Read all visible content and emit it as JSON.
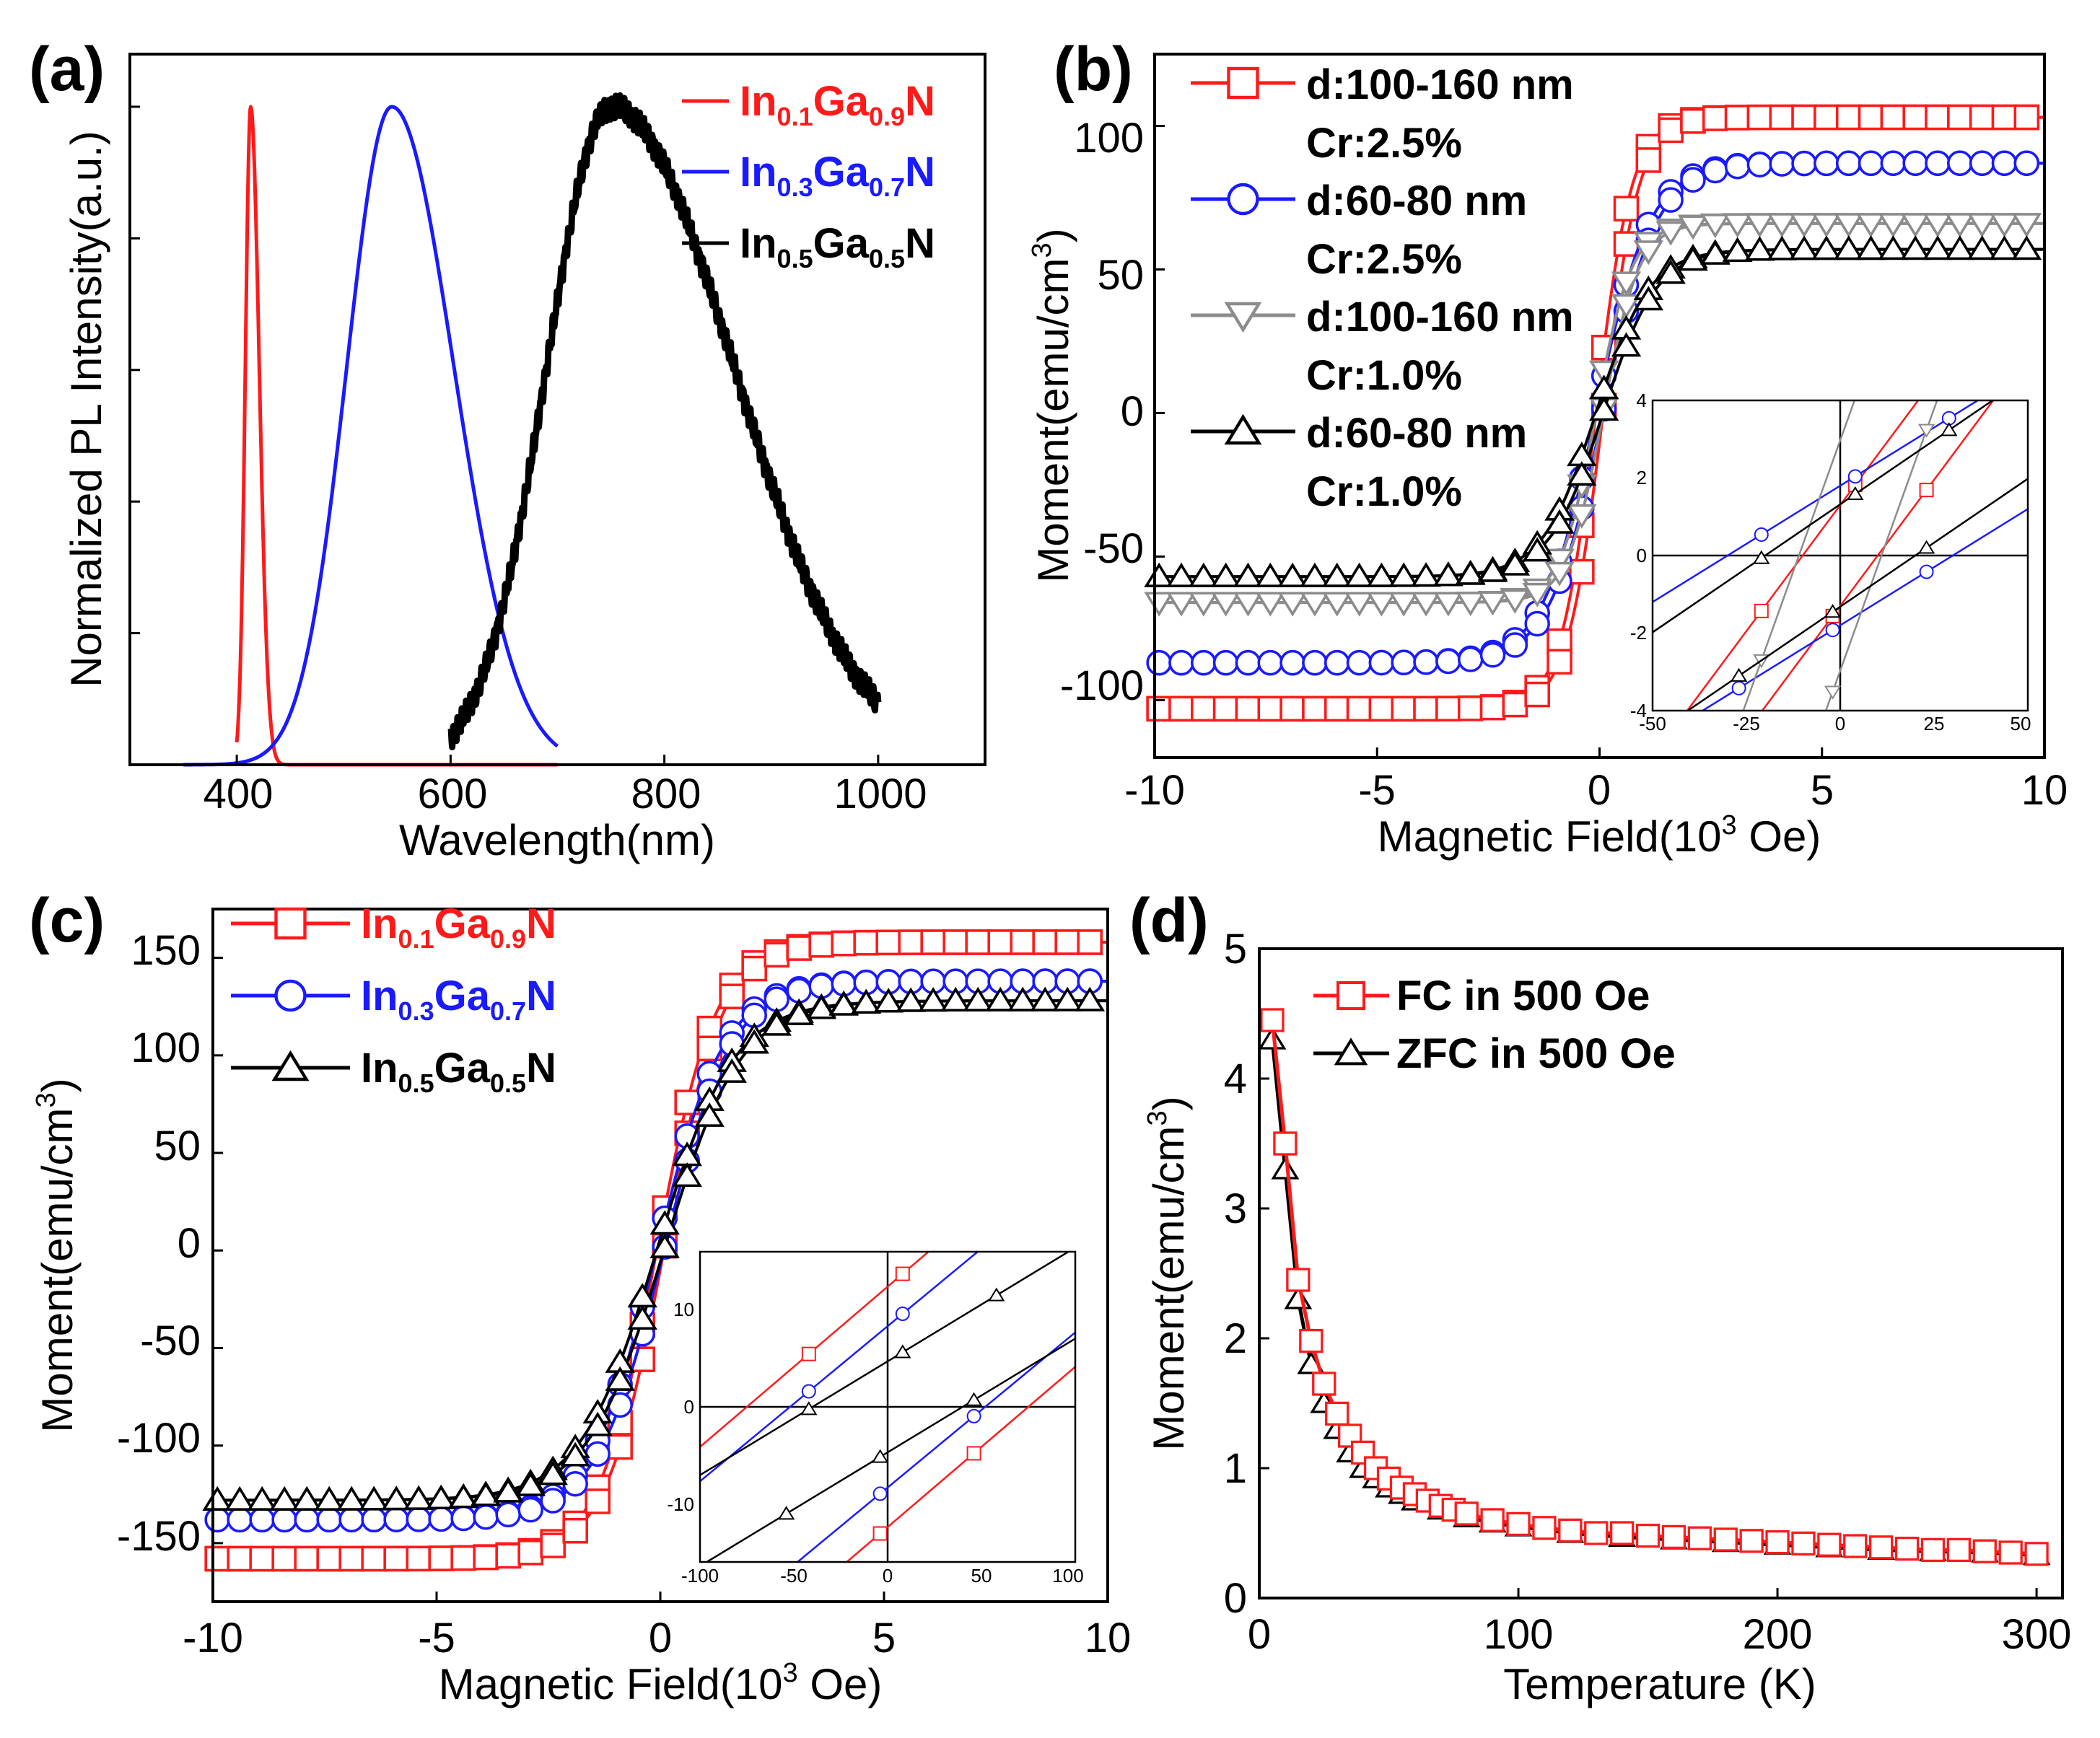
{
  "colors": {
    "red": "#ff1a1a",
    "blue": "#1a1aff",
    "black": "#000000",
    "gray": "#8c8c8c"
  },
  "chart_data": [
    {
      "id": "a",
      "panel_label": "(a)",
      "type": "line",
      "xlabel": "Wavelength(nm)",
      "ylabel": "Normalized PL Intensity(a.u.)",
      "xlim": [
        300,
        1100
      ],
      "ylim": [
        0,
        1.08
      ],
      "xticks": [
        "400",
        "600",
        "800",
        "1000"
      ],
      "y_tick_labels_shown": false,
      "legend_position": "top-right",
      "series": [
        {
          "name_main": "In",
          "sub1": "0.1",
          "mid": "Ga",
          "sub2": "0.9",
          "end": "N",
          "color": "red",
          "peak": 413,
          "sigma_left": 5,
          "sigma_right": 8,
          "range": [
            400,
            700
          ]
        },
        {
          "name_main": "In",
          "sub1": "0.3",
          "mid": "Ga",
          "sub2": "0.7",
          "end": "N",
          "color": "blue",
          "peak": 545,
          "sigma_left": 42,
          "sigma_right": 58,
          "range": [
            350,
            700
          ]
        },
        {
          "name_main": "In",
          "sub1": "0.5",
          "mid": "Ga",
          "sub2": "0.5",
          "end": "N",
          "color": "black",
          "peak": 750,
          "sigma_left": 60,
          "sigma_right": 115,
          "range": [
            600,
            1000
          ]
        }
      ]
    },
    {
      "id": "b",
      "panel_label": "(b)",
      "type": "line",
      "xlabel_pre": "Magnetic Field(10",
      "xlabel_sup": "3",
      "xlabel_post": " Oe)",
      "ylabel_pre": "Moment(emu/cm",
      "ylabel_sup": "3",
      "ylabel_post": ")",
      "xlim": [
        -10,
        10
      ],
      "ylim": [
        -120,
        125
      ],
      "xticks": [
        "-10",
        "-5",
        "0",
        "5",
        "10"
      ],
      "yticks": [
        "-100",
        "-50",
        "0",
        "50",
        "100"
      ],
      "legend_position": "top-left",
      "series": [
        {
          "line1": "d:100-160 nm",
          "line2": "Cr:2.5%",
          "color": "red",
          "marker": "square",
          "Ms": 103,
          "Hs": 0.8
        },
        {
          "line1": "d:60-80 nm",
          "line2": "Cr:2.5%",
          "color": "blue",
          "marker": "circle",
          "Ms": 87,
          "Hs": 1.2
        },
        {
          "line1": "d:100-160 nm",
          "line2": "Cr:1.0%",
          "color": "gray",
          "marker": "triangle-down",
          "Ms": 66,
          "Hs": 0.8
        },
        {
          "line1": "d:60-80 nm",
          "line2": "Cr:1.0%",
          "color": "black",
          "marker": "triangle",
          "Ms": 57,
          "Hs": 1.2
        }
      ],
      "inset": {
        "xlim": [
          -50,
          50
        ],
        "ylim": [
          -4,
          4
        ],
        "xticks": [
          "-50",
          "-25",
          "0",
          "25",
          "50"
        ],
        "yticks": [
          "-4",
          "-2",
          "0",
          "2",
          "4"
        ],
        "series": [
          {
            "color": "red",
            "slope": 0.13,
            "Hc": 10,
            "marker": "square"
          },
          {
            "color": "blue",
            "slope": 0.06,
            "Hc": 30,
            "marker": "circle"
          },
          {
            "color": "gray",
            "slope": 0.27,
            "Hc": 11,
            "marker": "triangle-down"
          },
          {
            "color": "black",
            "slope": 0.066,
            "Hc": 20,
            "marker": "triangle"
          }
        ]
      }
    },
    {
      "id": "c",
      "panel_label": "(c)",
      "type": "line",
      "xlabel_pre": "Magnetic Field(10",
      "xlabel_sup": "3",
      "xlabel_post": " Oe)",
      "ylabel_pre": "Moment(emu/cm",
      "ylabel_sup": "3",
      "ylabel_post": ")",
      "xlim": [
        -10,
        10
      ],
      "ylim": [
        -180,
        175
      ],
      "xticks": [
        "-10",
        "-5",
        "0",
        "5",
        "10"
      ],
      "yticks": [
        "-150",
        "-100",
        "-50",
        "0",
        "50",
        "100",
        "150"
      ],
      "legend_position": "top-left",
      "series": [
        {
          "name_main": "In",
          "sub1": "0.1",
          "mid": "Ga",
          "sub2": "0.9",
          "end": "N",
          "color": "red",
          "marker": "square",
          "Ms": 158,
          "Hs": 1.3
        },
        {
          "name_main": "In",
          "sub1": "0.3",
          "mid": "Ga",
          "sub2": "0.7",
          "end": "N",
          "color": "blue",
          "marker": "circle",
          "Ms": 138,
          "Hs": 1.5
        },
        {
          "name_main": "In",
          "sub1": "0.5",
          "mid": "Ga",
          "sub2": "0.5",
          "end": "N",
          "color": "black",
          "marker": "triangle",
          "Ms": 128,
          "Hs": 1.7
        }
      ],
      "inset": {
        "xlim": [
          -100,
          100
        ],
        "ylim": [
          -15,
          15
        ],
        "xticks": [
          "-100",
          "-50",
          "0",
          "50",
          "100"
        ],
        "yticks": [
          "-10",
          "0",
          "10"
        ],
        "series": [
          {
            "color": "red",
            "slope": 0.155,
            "Hc": 75,
            "marker": "square"
          },
          {
            "color": "blue",
            "slope": 0.15,
            "Hc": 52,
            "marker": "circle"
          },
          {
            "color": "black",
            "slope": 0.11,
            "Hc": 40,
            "marker": "triangle"
          }
        ]
      }
    },
    {
      "id": "d",
      "panel_label": "(d)",
      "type": "line",
      "xlabel": "Temperature (K)",
      "ylabel_pre": "Moment(emu/cm",
      "ylabel_sup": "3",
      "ylabel_post": ")",
      "xlim": [
        0,
        310
      ],
      "ylim": [
        0,
        5
      ],
      "xticks": [
        "0",
        "100",
        "200",
        "300"
      ],
      "yticks": [
        "0",
        "1",
        "2",
        "3",
        "4",
        "5"
      ],
      "legend_position": "top-left",
      "series": [
        {
          "name": "FC in 500 Oe",
          "color": "red",
          "marker": "square",
          "points": [
            [
              5,
              4.45
            ],
            [
              10,
              3.5
            ],
            [
              15,
              2.45
            ],
            [
              20,
              1.98
            ],
            [
              25,
              1.65
            ],
            [
              30,
              1.42
            ],
            [
              35,
              1.25
            ],
            [
              40,
              1.12
            ],
            [
              45,
              1.0
            ],
            [
              50,
              0.92
            ],
            [
              55,
              0.85
            ],
            [
              60,
              0.8
            ],
            [
              65,
              0.75
            ],
            [
              70,
              0.71
            ],
            [
              75,
              0.68
            ],
            [
              80,
              0.65
            ],
            [
              90,
              0.6
            ],
            [
              100,
              0.57
            ],
            [
              110,
              0.54
            ],
            [
              120,
              0.52
            ],
            [
              130,
              0.5
            ],
            [
              140,
              0.5
            ],
            [
              150,
              0.48
            ],
            [
              160,
              0.47
            ],
            [
              170,
              0.46
            ],
            [
              180,
              0.45
            ],
            [
              190,
              0.44
            ],
            [
              200,
              0.43
            ],
            [
              210,
              0.42
            ],
            [
              220,
              0.41
            ],
            [
              230,
              0.4
            ],
            [
              240,
              0.39
            ],
            [
              250,
              0.38
            ],
            [
              260,
              0.37
            ],
            [
              270,
              0.37
            ],
            [
              280,
              0.36
            ],
            [
              290,
              0.35
            ],
            [
              300,
              0.34
            ]
          ]
        },
        {
          "name": "ZFC in 500 Oe",
          "color": "black",
          "marker": "triangle",
          "points": [
            [
              5,
              4.3
            ],
            [
              10,
              3.3
            ],
            [
              15,
              2.3
            ],
            [
              20,
              1.8
            ],
            [
              25,
              1.5
            ],
            [
              30,
              1.3
            ],
            [
              35,
              1.12
            ],
            [
              40,
              1.0
            ],
            [
              45,
              0.92
            ],
            [
              50,
              0.85
            ],
            [
              55,
              0.8
            ],
            [
              60,
              0.75
            ],
            [
              70,
              0.68
            ],
            [
              80,
              0.62
            ],
            [
              90,
              0.58
            ],
            [
              100,
              0.55
            ],
            [
              120,
              0.5
            ],
            [
              140,
              0.47
            ],
            [
              160,
              0.45
            ],
            [
              180,
              0.43
            ],
            [
              200,
              0.41
            ],
            [
              220,
              0.39
            ],
            [
              240,
              0.37
            ],
            [
              260,
              0.36
            ],
            [
              280,
              0.35
            ],
            [
              300,
              0.33
            ]
          ]
        }
      ]
    }
  ]
}
